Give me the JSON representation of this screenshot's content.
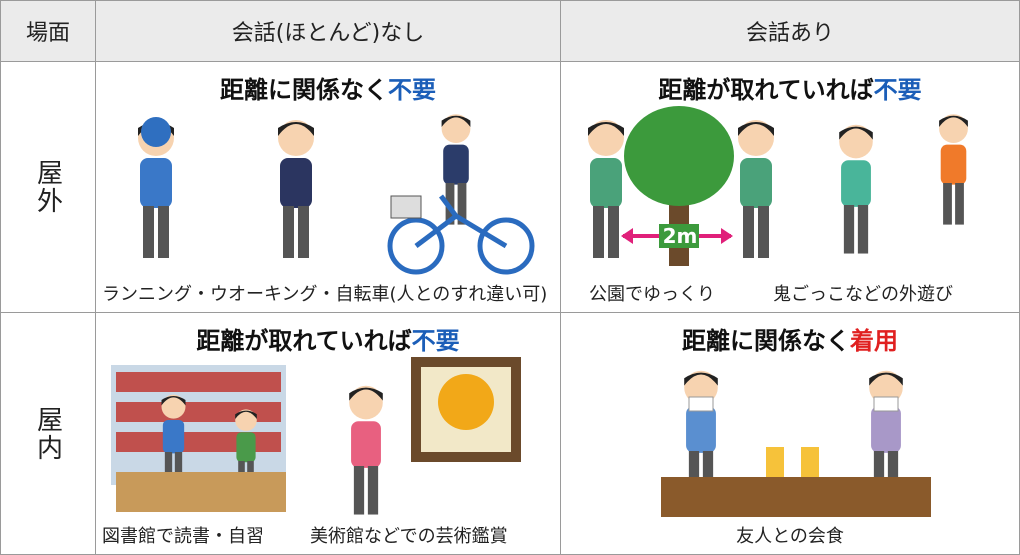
{
  "table": {
    "headers": [
      "場面",
      "会話(ほとんど)なし",
      "会話あり"
    ],
    "rows": [
      {
        "scene": "屋外",
        "cells": [
          {
            "heading": "距離に関係なく",
            "key": "不要",
            "captions": [
              "ランニング・ウオーキング・自転車(人とのすれ違い可)"
            ]
          },
          {
            "heading": "距離が取れていれば",
            "key": "不要",
            "annotation": "2m",
            "captions": [
              "公園でゆっくり",
              "鬼ごっこなどの外遊び"
            ]
          }
        ]
      },
      {
        "scene": "屋内",
        "cells": [
          {
            "heading": "距離が取れていれば",
            "key": "不要",
            "captions": [
              "図書館で読書・自習",
              "美術館などでの芸術鑑賞"
            ]
          },
          {
            "heading": "距離に関係なく",
            "key": "着用",
            "captions": [
              "友人との会食"
            ]
          }
        ]
      }
    ]
  }
}
